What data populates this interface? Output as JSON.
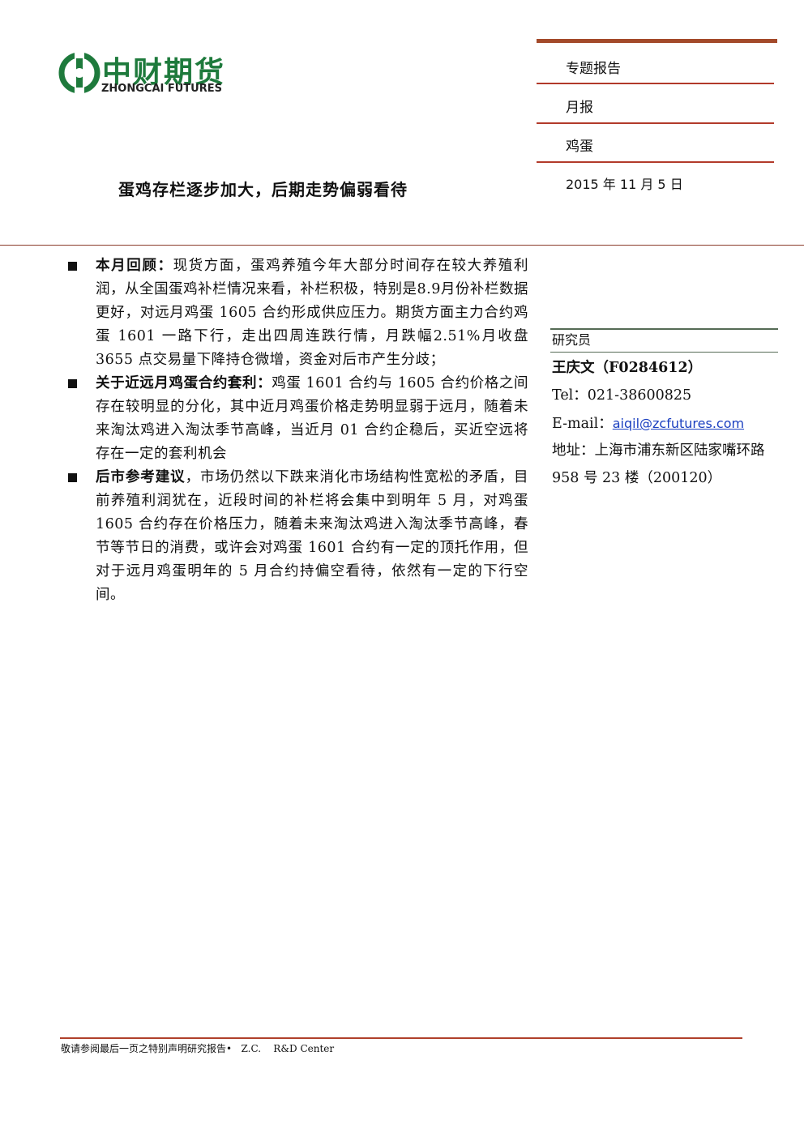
{
  "logo": {
    "name": "中财期货",
    "subname": "ZHONGCAI FUTURES"
  },
  "report_info": [
    "专题报告",
    "月报",
    "鸡蛋",
    "2015 年 11 月 5 日"
  ],
  "title": "蛋鸡存栏逐步加大，后期走势偏弱看待",
  "bullets": [
    {
      "heading": "本月回顾：",
      "text": "现货方面，蛋鸡养殖今年大部分时间存在较大养殖利润，从全国蛋鸡补栏情况来看，补栏积极，特别是8.9月份补栏数据更好，对远月鸡蛋 1605 合约形成供应压力。期货方面主力合约鸡蛋 1601 一路下行，走出四周连跌行情，月跌幅2.51%月收盘 3655 点交易量下降持仓微增，资金对后市产生分歧；"
    },
    {
      "heading": "关于近远月鸡蛋合约套利：",
      "text": "鸡蛋 1601 合约与 1605 合约价格之间存在较明显的分化，其中近月鸡蛋价格走势明显弱于远月，随着未来淘汰鸡进入淘汰季节高峰，当近月 01 合约企稳后，买近空远将存在一定的套利机会"
    },
    {
      "heading": "后市参考建议",
      "text": "，市场仍然以下跌来消化市场结构性宽松的矛盾，目前养殖利润犹在，近段时间的补栏将会集中到明年 5 月，对鸡蛋 1605 合约存在价格压力，随着未来淘汰鸡进入淘汰季节高峰，春节等节日的消费，或许会对鸡蛋 1601 合约有一定的顶托作用，但对于远月鸡蛋明年的 5 月合约持偏空看待，依然有一定的下行空间。"
    }
  ],
  "researcher": {
    "label": "研究员",
    "name": "王庆文（F0284612）",
    "tel": "Tel：021-38600825",
    "email_label": "E-mail：",
    "email": "aiqil@zcfutures.com",
    "address": "地址：上海市浦东新区陆家嘴环路 958 号 23 楼（200120）"
  },
  "footer": "敬请参阅最后一页之特别声明研究报告•   Z.C.    R&D Center"
}
